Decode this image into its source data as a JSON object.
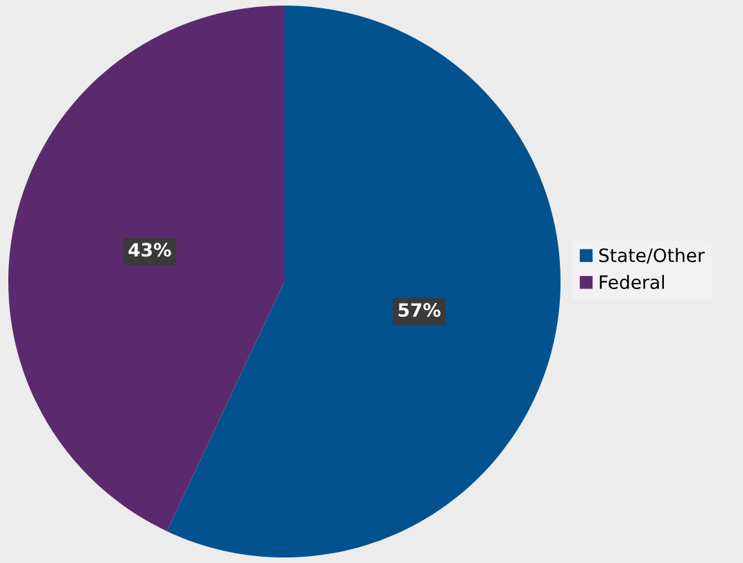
{
  "chart_data": {
    "type": "pie",
    "categories": [
      "State/Other",
      "Federal"
    ],
    "values": [
      57,
      43
    ],
    "colors": [
      "#02528f",
      "#5b2a6e"
    ],
    "value_labels": [
      "57%",
      "43%"
    ],
    "legend": "right"
  }
}
